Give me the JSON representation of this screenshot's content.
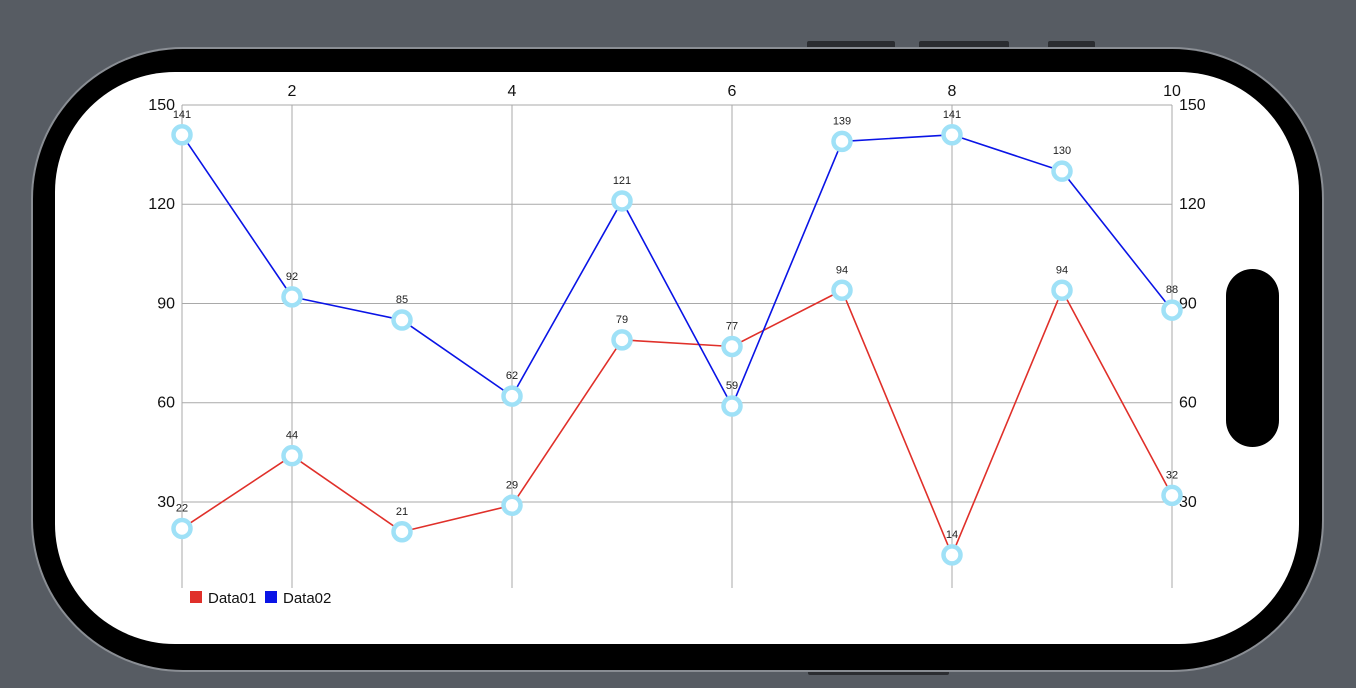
{
  "chart_data": {
    "type": "line",
    "title": "",
    "xlabel": "",
    "ylabel": "",
    "x": [
      1,
      2,
      3,
      4,
      5,
      6,
      7,
      8,
      9,
      10
    ],
    "x_ticks": [
      2,
      4,
      6,
      8,
      10
    ],
    "x_tick_labels": [
      "2",
      "4",
      "6",
      "8",
      "10"
    ],
    "xlim": [
      1,
      10
    ],
    "y_ticks": [
      30,
      60,
      90,
      120,
      150
    ],
    "y_tick_labels": [
      "30",
      "60",
      "90",
      "120",
      "150"
    ],
    "ylim": [
      4,
      150
    ],
    "grid": true,
    "x_axis_position": "top",
    "y_axis": "left and right",
    "legend_position": "bottom-left",
    "marker": "ring",
    "marker_color": "#9fe1f7",
    "series": [
      {
        "name": "Data01",
        "color": "#e0302a",
        "values": [
          22,
          44,
          21,
          29,
          79,
          77,
          94,
          14,
          94,
          32
        ],
        "labels": [
          "22",
          "44",
          "21",
          "29",
          "79",
          "77",
          "94",
          "14",
          "94",
          "32"
        ]
      },
      {
        "name": "Data02",
        "color": "#0a14e6",
        "values": [
          141,
          92,
          85,
          62,
          121,
          59,
          139,
          141,
          130,
          88
        ],
        "labels": [
          "141",
          "92",
          "85",
          "62",
          "121",
          "59",
          "139",
          "141",
          "130",
          "88"
        ]
      }
    ]
  },
  "colors": {
    "background": "#575c63",
    "screen": "#ffffff",
    "grid": "#a9a9a9"
  }
}
